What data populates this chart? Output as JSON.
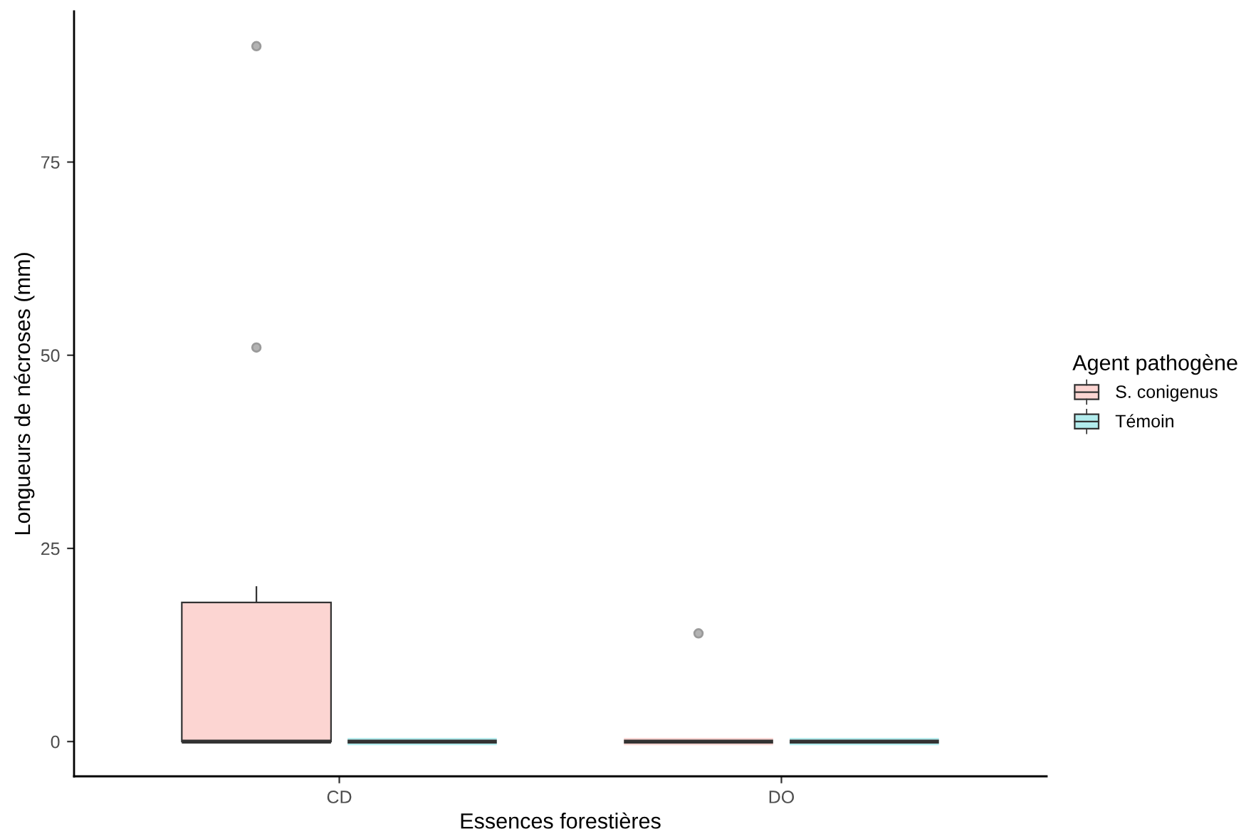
{
  "chart_data": {
    "type": "box",
    "xlabel": "Essences forestières",
    "ylabel": "Longueurs de nécroses (mm)",
    "legend_title": "Agent pathogène",
    "legend": "right",
    "categories": [
      "CD",
      "DO"
    ],
    "ylim": [
      -4.5,
      94.5
    ],
    "yticks": [
      0,
      25,
      50,
      75
    ],
    "series": [
      {
        "name": "S. conigenus",
        "color": "#fcd5d2",
        "boxes": [
          {
            "low": 0,
            "q1": 0,
            "median": 0,
            "q3": 18,
            "high": 20,
            "outliers": [
              51,
              90
            ]
          },
          {
            "low": 0,
            "q1": 0,
            "median": 0,
            "q3": 0,
            "high": 0,
            "outliers": [
              14
            ]
          }
        ]
      },
      {
        "name": "Témoin",
        "color": "#b2eced",
        "boxes": [
          {
            "low": 0,
            "q1": 0,
            "median": 0,
            "q3": 0,
            "high": 0
          },
          {
            "low": 0,
            "q1": 0,
            "median": 0,
            "q3": 0,
            "high": 0
          }
        ]
      }
    ]
  }
}
